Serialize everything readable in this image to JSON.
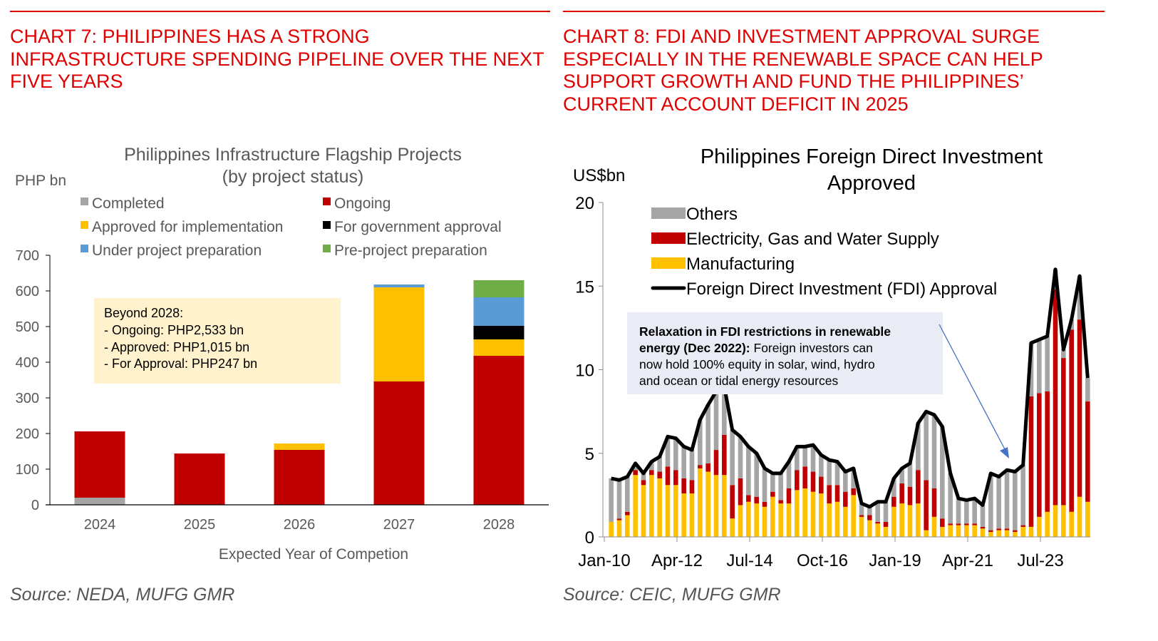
{
  "left": {
    "heading": [
      "CHART 7: PHILIPPINES HAS A STRONG",
      "INFRASTRUCTURE SPENDING PIPELINE OVER THE NEXT",
      "FIVE YEARS"
    ],
    "source": "Source: NEDA, MUFG GMR",
    "annotation": [
      "Beyond 2028:",
      "- Ongoing: PHP2,533 bn",
      "- Approved: PHP1,015 bn",
      "- For Approval: PHP247 bn"
    ]
  },
  "right": {
    "heading": [
      "CHART 8: FDI AND INVESTMENT APPROVAL SURGE",
      "ESPECIALLY IN THE RENEWABLE SPACE CAN HELP",
      "SUPPORT GROWTH AND FUND THE PHILIPPINES’",
      "CURRENT ACCOUNT DEFICIT IN 2025"
    ],
    "source": "Source: CEIC, MUFG GMR",
    "annotation": {
      "bold": "Relaxation in FDI restrictions in renewable energy (Dec 2022):",
      "lines": [
        {
          "bold": "Relaxation in FDI restrictions in renewable",
          "normal": ""
        },
        {
          "bold": "energy (Dec 2022):",
          "normal": " Foreign investors can"
        },
        {
          "bold": "",
          "normal": "now hold 100% equity in solar, wind, hydro"
        },
        {
          "bold": "",
          "normal": "and ocean or tidal energy resources"
        }
      ]
    }
  },
  "chart_data": [
    {
      "type": "bar",
      "stacked": true,
      "title": "Philippines Infrastructure Flagship Projects (by project status)",
      "title_lines": [
        "Philippines Infrastructure Flagship Projects",
        "(by project status)"
      ],
      "ylabel": "PHP bn",
      "xlabel": "Expected Year of Competion",
      "ylim": [
        0,
        700
      ],
      "yticks": [
        0,
        100,
        200,
        300,
        400,
        500,
        600,
        700
      ],
      "categories": [
        "2024",
        "2025",
        "2026",
        "2027",
        "2028"
      ],
      "legend_position": "top",
      "series": [
        {
          "name": "Completed",
          "color": "#a5a5a5",
          "values": [
            20,
            0,
            0,
            0,
            0
          ]
        },
        {
          "name": "Ongoing",
          "color": "#c00000",
          "values": [
            186,
            144,
            154,
            346,
            418
          ]
        },
        {
          "name": "Approved for implementation",
          "color": "#ffc000",
          "values": [
            0,
            0,
            18,
            264,
            46
          ]
        },
        {
          "name": "For government approval",
          "color": "#000000",
          "values": [
            0,
            0,
            0,
            0,
            38
          ]
        },
        {
          "name": "Under project preparation",
          "color": "#5b9bd5",
          "values": [
            0,
            0,
            0,
            8,
            80
          ]
        },
        {
          "name": "Pre-project preparation",
          "color": "#70ad47",
          "values": [
            0,
            0,
            0,
            0,
            48
          ]
        }
      ],
      "legend_order": [
        "Completed",
        "Ongoing",
        "Approved for implementation",
        "For government approval",
        "Under project preparation",
        "Pre-project preparation"
      ]
    },
    {
      "type": "bar",
      "stacked": true,
      "frequency": "quarterly",
      "title": "Philippines Foreign Direct Investment Approved",
      "title_lines": [
        "Philippines Foreign Direct Investment",
        "Approved"
      ],
      "ylabel": "US$bn",
      "xlabel": "",
      "ylim": [
        0,
        20
      ],
      "yticks": [
        0,
        5,
        10,
        15,
        20
      ],
      "xtick_labels": [
        "Jan-10",
        "Apr-12",
        "Jul-14",
        "Oct-16",
        "Jan-19",
        "Apr-21",
        "Jul-23"
      ],
      "xtick_every_quarters": 9,
      "start": "2010-Q1",
      "legend_position": "top-left",
      "legend": [
        {
          "name": "Others",
          "color": "#a5a5a5",
          "kind": "bar"
        },
        {
          "name": "Electricity, Gas and Water Supply",
          "color": "#c00000",
          "kind": "bar"
        },
        {
          "name": "Manufacturing",
          "color": "#ffc000",
          "kind": "bar"
        },
        {
          "name": "Foreign Direct Investment (FDI) Approval",
          "color": "#000000",
          "kind": "line"
        }
      ],
      "series": [
        {
          "name": "Manufacturing",
          "values": [
            0.9,
            1.0,
            1.3,
            3.7,
            3.1,
            3.7,
            3.5,
            3.1,
            3.1,
            2.6,
            2.6,
            4.1,
            3.9,
            3.7,
            3.7,
            1.1,
            1.9,
            2.1,
            2.0,
            1.8,
            2.4,
            2.0,
            2.0,
            2.8,
            2.9,
            2.7,
            2.6,
            2.0,
            2.1,
            1.8,
            2.5,
            1.2,
            1.0,
            0.8,
            0.6,
            1.8,
            2.0,
            1.9,
            2.0,
            0.4,
            1.2,
            0.6,
            0.7,
            0.7,
            0.7,
            0.7,
            0.5,
            0.3,
            0.4,
            0.4,
            0.3,
            0.6,
            0.6,
            1.2,
            1.5,
            1.9,
            1.9,
            1.5,
            2.4,
            2.1
          ]
        },
        {
          "name": "Electricity, Gas and Water Supply",
          "values": [
            0.0,
            0.1,
            0.2,
            0.3,
            0.3,
            0.3,
            0.4,
            1.1,
            0.9,
            0.9,
            0.8,
            0.2,
            0.5,
            1.5,
            2.4,
            2.0,
            1.6,
            0.4,
            0.4,
            0.3,
            0.3,
            0.2,
            0.9,
            1.2,
            1.3,
            1.2,
            1.0,
            1.1,
            1.0,
            0.9,
            0.4,
            0.1,
            0.3,
            0.1,
            0.3,
            0.6,
            1.2,
            1.1,
            2.0,
            3.0,
            1.7,
            0.5,
            0.1,
            0.1,
            0.1,
            0.1,
            0.1,
            0.1,
            0.1,
            0.1,
            0.1,
            0.1,
            7.8,
            7.4,
            7.2,
            12.9,
            8.8,
            10.9,
            10.6,
            6.0
          ]
        },
        {
          "name": "Foreign Direct Investment (FDI) Approval",
          "values": [
            3.5,
            3.4,
            3.6,
            4.4,
            3.8,
            4.5,
            4.8,
            6.0,
            5.9,
            5.4,
            5.2,
            7.0,
            7.9,
            8.7,
            9.0,
            6.4,
            6.0,
            5.4,
            5.0,
            4.1,
            3.8,
            3.8,
            4.5,
            5.4,
            5.4,
            5.5,
            4.9,
            4.6,
            4.5,
            3.9,
            4.1,
            2.0,
            1.8,
            2.1,
            2.1,
            3.5,
            4.1,
            4.4,
            6.8,
            7.5,
            7.3,
            6.6,
            3.8,
            2.3,
            2.2,
            2.3,
            1.9,
            3.8,
            3.6,
            4.0,
            3.9,
            4.3,
            11.6,
            11.8,
            12.0,
            16.0,
            11.2,
            13.0,
            15.6,
            9.5
          ]
        }
      ],
      "others_note": "Others = FDI Approval total minus Manufacturing minus Electricity, Gas and Water Supply"
    }
  ]
}
